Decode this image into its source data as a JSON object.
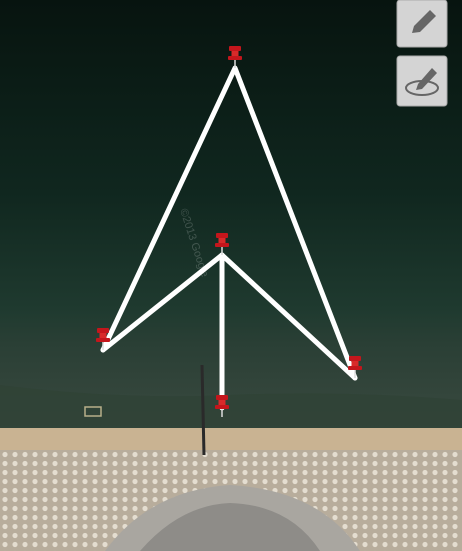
{
  "map": {
    "watermark": "©2013 Google"
  }
}
